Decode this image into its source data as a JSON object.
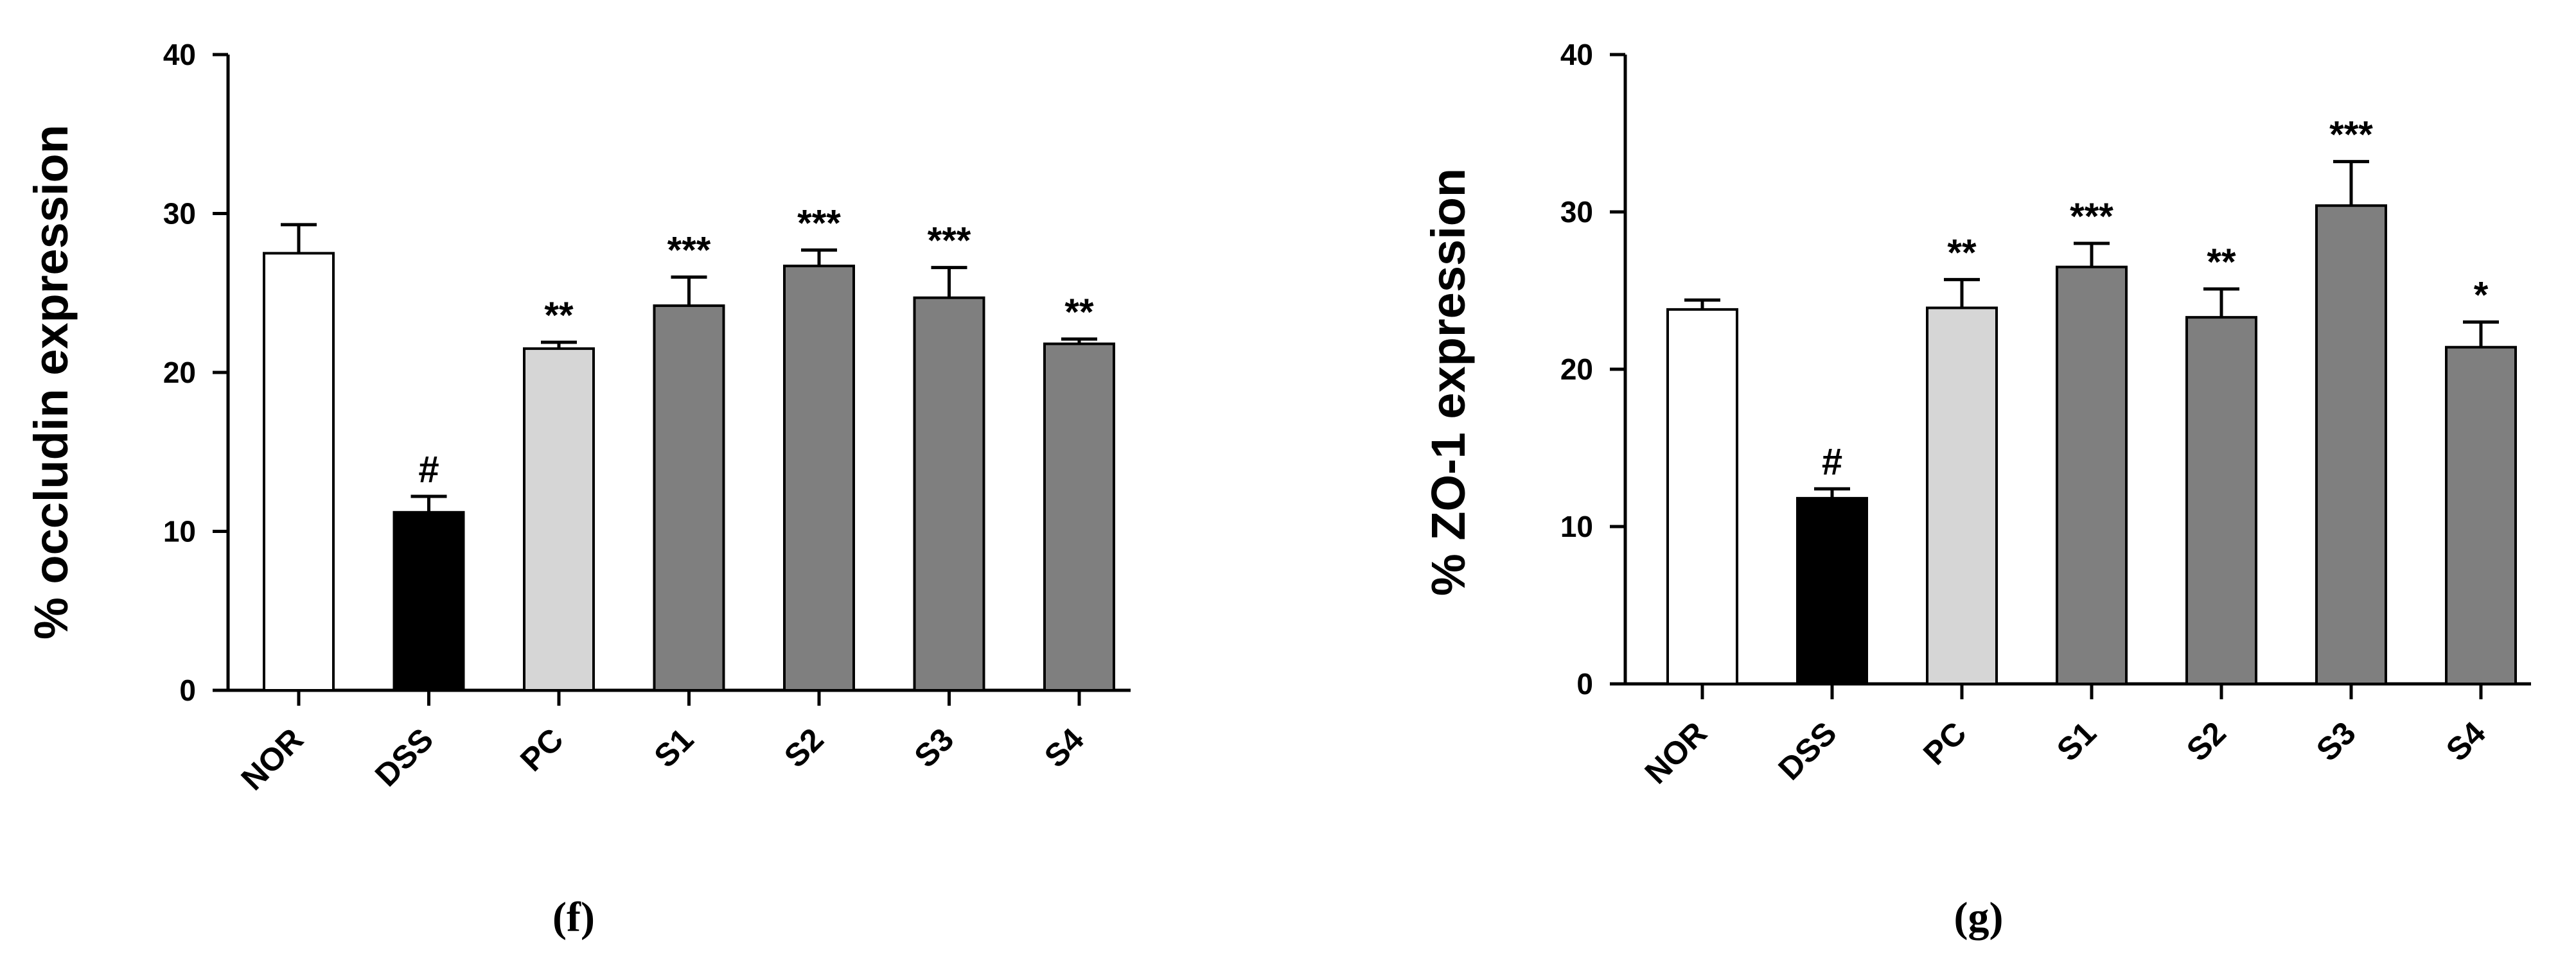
{
  "colors": {
    "NOR": "#ffffff",
    "DSS": "#000000",
    "PC": "#d6d6d6",
    "S": "#7f7f7f",
    "axis": "#000000"
  },
  "chart_data": [
    {
      "type": "bar",
      "panel_label": "(f)",
      "ylabel": "% occludin expression",
      "ylim": [
        0,
        40
      ],
      "yticks": [
        0,
        10,
        20,
        30,
        40
      ],
      "grid": false,
      "categories": [
        "NOR",
        "DSS",
        "PC",
        "S1",
        "S2",
        "S3",
        "S4"
      ],
      "series": [
        {
          "values": [
            27.5,
            11.2,
            21.5,
            24.2,
            26.7,
            24.7,
            21.8
          ],
          "errors": [
            1.8,
            1.0,
            0.4,
            1.8,
            1.0,
            1.9,
            0.3
          ]
        }
      ],
      "annotations": [
        "",
        "#",
        "**",
        "***",
        "***",
        "***",
        "**"
      ]
    },
    {
      "type": "bar",
      "panel_label": "(g)",
      "ylabel": "% ZO-1 expression",
      "ylim": [
        0,
        40
      ],
      "yticks": [
        0,
        10,
        20,
        30,
        40
      ],
      "grid": false,
      "categories": [
        "NOR",
        "DSS",
        "PC",
        "S1",
        "S2",
        "S3",
        "S4"
      ],
      "series": [
        {
          "values": [
            23.8,
            11.8,
            23.9,
            26.5,
            23.3,
            30.4,
            21.4
          ],
          "errors": [
            0.6,
            0.6,
            1.8,
            1.5,
            1.8,
            2.8,
            1.6
          ]
        }
      ],
      "annotations": [
        "",
        "#",
        "**",
        "***",
        "**",
        "***",
        "*"
      ]
    }
  ]
}
